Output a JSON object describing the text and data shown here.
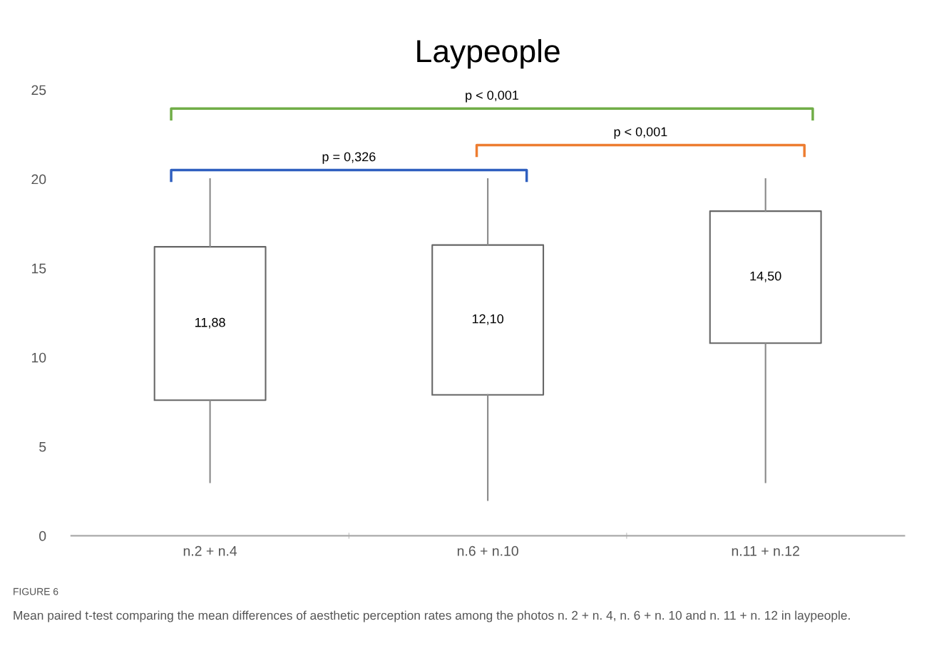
{
  "chart_data": {
    "type": "box",
    "title": "Laypeople",
    "categories": [
      "n.2 + n.4",
      "n.6 + n.10",
      "n.11 + n.12"
    ],
    "boxes": [
      {
        "low": 3,
        "q1": 7.6,
        "q3": 16.2,
        "high": 20
      },
      {
        "low": 2,
        "q1": 7.9,
        "q3": 16.3,
        "high": 20
      },
      {
        "low": 3,
        "q1": 10.8,
        "q3": 18.2,
        "high": 20
      }
    ],
    "ylim": [
      0,
      25
    ],
    "yticks": [
      0,
      5,
      10,
      15,
      20,
      25
    ],
    "annotations": [
      "11,88",
      "12,10",
      "14,50",
      "p = 0,326",
      "p < 0,001",
      "p < 0,001",
      "FIGURE 6",
      "Mean paired t-test comparing the mean differences of aesthetic perception rates among the photos n. 2 + n. 4, n. 6 + n. 10 and n. 11 + n. 12 in laypeople."
    ]
  }
}
